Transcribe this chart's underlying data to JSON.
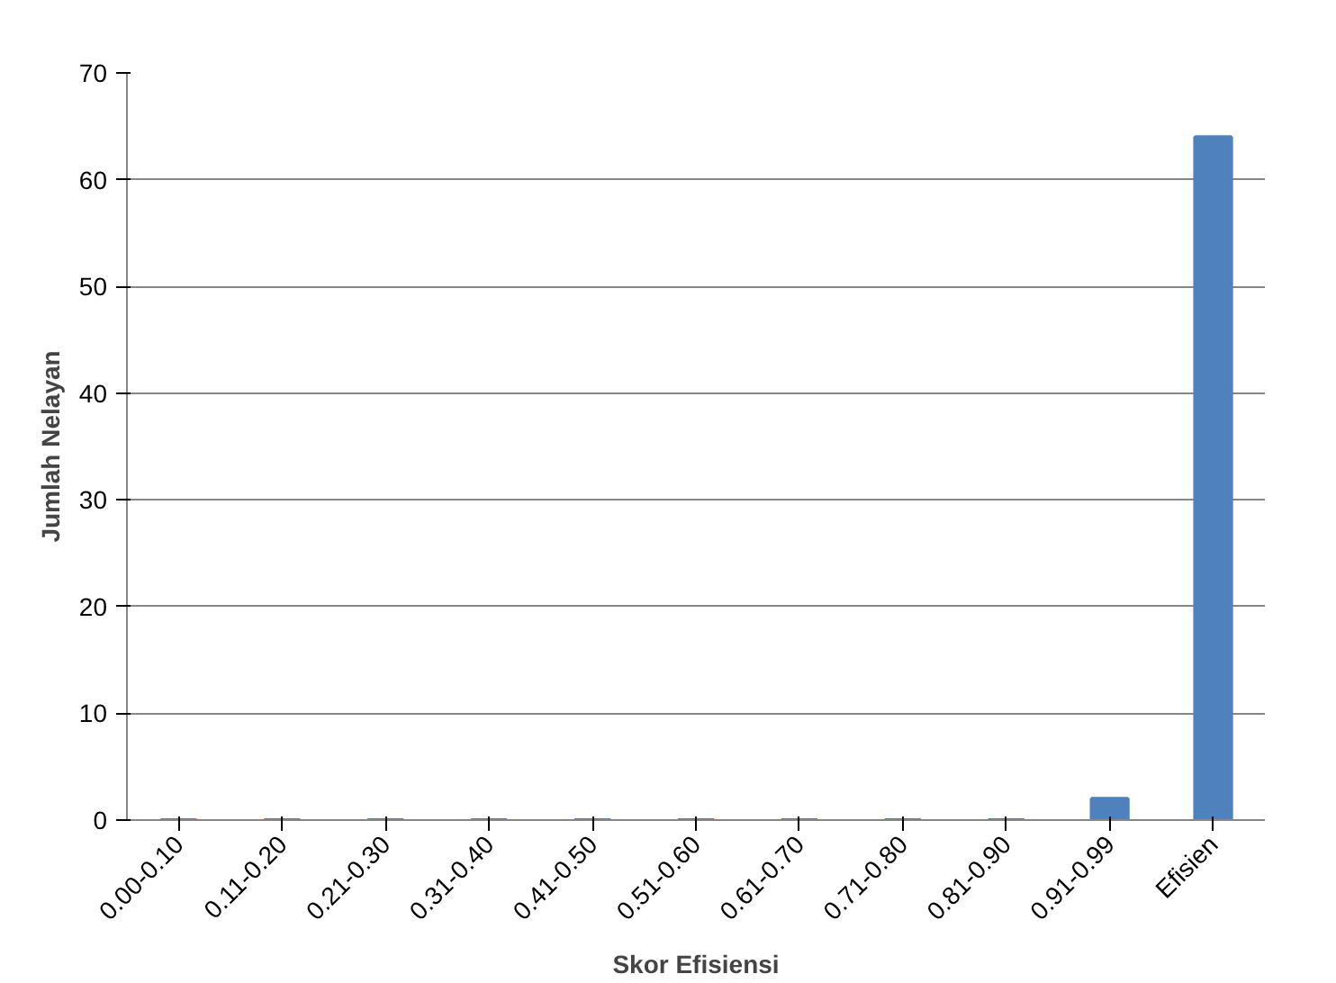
{
  "chart_data": {
    "type": "bar",
    "xlabel": "Skor Efisiensi",
    "ylabel": "Jumlah Nelayan",
    "categories": [
      "0.00-0.10",
      "0.11-0.20",
      "0.21-0.30",
      "0.31-0.40",
      "0.41-0.50",
      "0.51-0.60",
      "0.61-0.70",
      "0.71-0.80",
      "0.81-0.90",
      "0.91-0.99",
      "Efisien"
    ],
    "values": [
      0,
      0,
      0,
      0,
      0,
      0,
      0,
      0,
      0,
      2,
      64
    ],
    "color": "#4f81bd",
    "ylim": [
      0,
      70
    ],
    "yticks": [
      0,
      10,
      20,
      30,
      40,
      50,
      60,
      70
    ],
    "grid": "y"
  }
}
